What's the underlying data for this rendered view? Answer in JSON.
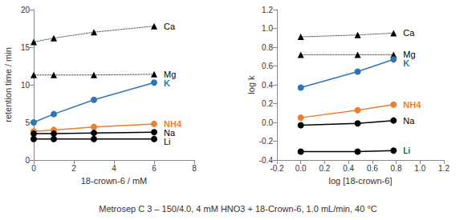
{
  "caption": "Metrosep C 3 – 150/4.0, 4 mM HNO3 + 18-Crown-6, 1.0 mL/min, 40 °C",
  "chart_data": [
    {
      "type": "line",
      "x_label": "18-crown-6 / mM",
      "y_label": "retention time / min",
      "x": [
        0,
        1,
        3,
        6
      ],
      "xlim": [
        0,
        8
      ],
      "xticks": [
        0,
        2,
        4,
        6,
        8
      ],
      "ylim": [
        0,
        20
      ],
      "yticks": [
        0,
        5,
        10,
        15,
        20
      ],
      "grid": false,
      "series": [
        {
          "name": "Ca",
          "color": "#000000",
          "marker": "triangle",
          "line_style": "dotted",
          "values": [
            15.7,
            16.2,
            17.0,
            17.8
          ]
        },
        {
          "name": "Mg",
          "color": "#000000",
          "marker": "triangle",
          "line_style": "dotted",
          "values": [
            11.3,
            11.3,
            11.3,
            11.4
          ]
        },
        {
          "name": "K",
          "color": "#2e75b6",
          "marker": "circle",
          "line_style": "solid",
          "values": [
            5.0,
            6.1,
            8.0,
            10.3
          ]
        },
        {
          "name": "NH4",
          "color": "#ed7d31",
          "marker": "circle",
          "line_style": "solid",
          "values": [
            3.8,
            4.0,
            4.4,
            4.8
          ]
        },
        {
          "name": "Na",
          "color": "#000000",
          "marker": "circle",
          "line_style": "solid",
          "values": [
            3.5,
            3.5,
            3.6,
            3.7
          ]
        },
        {
          "name": "Li",
          "color": "#000000",
          "marker": "circle",
          "line_style": "solid",
          "values": [
            2.8,
            2.8,
            2.8,
            2.8
          ]
        }
      ]
    },
    {
      "type": "line",
      "x_label": "log [18-crown-6]",
      "y_label": "log k",
      "x": [
        0,
        0.477,
        0.778
      ],
      "xlim": [
        -0.2,
        1.2
      ],
      "xticks": [
        -0.2,
        {
          "value": 0,
          "label": "0.0"
        },
        0.2,
        0.4,
        0.6,
        0.8,
        {
          "value": 1,
          "label": "1.0"
        },
        1.2
      ],
      "ylim": [
        -0.4,
        1.2
      ],
      "yticks": [
        -0.4,
        -0.2,
        {
          "value": 0,
          "label": "0.0"
        },
        0.2,
        0.4,
        0.6,
        0.8,
        {
          "value": 1,
          "label": "1.0"
        },
        1.2
      ],
      "grid": false,
      "series": [
        {
          "name": "Ca",
          "color": "#000000",
          "marker": "triangle",
          "line_style": "dotted",
          "values": [
            0.91,
            0.93,
            0.95
          ]
        },
        {
          "name": "Mg",
          "color": "#000000",
          "marker": "triangle",
          "line_style": "dotted",
          "values": [
            0.72,
            0.72,
            0.72
          ]
        },
        {
          "name": "K",
          "color": "#2e75b6",
          "marker": "circle",
          "line_style": "solid",
          "values": [
            0.37,
            0.54,
            0.67
          ]
        },
        {
          "name": "NH4",
          "color": "#ed7d31",
          "marker": "circle",
          "line_style": "solid",
          "values": [
            0.05,
            0.13,
            0.19
          ]
        },
        {
          "name": "Na",
          "color": "#000000",
          "marker": "circle",
          "line_style": "solid",
          "values": [
            -0.03,
            -0.01,
            0.02
          ]
        },
        {
          "name": "Li",
          "color": "#000000",
          "marker": "circle",
          "line_style": "solid",
          "values": [
            -0.31,
            -0.31,
            -0.3
          ]
        }
      ]
    }
  ]
}
